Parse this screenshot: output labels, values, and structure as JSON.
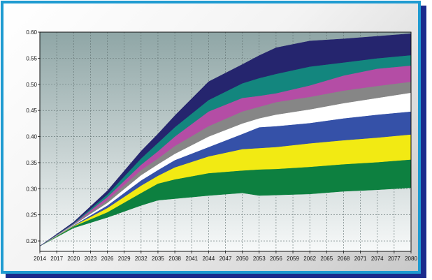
{
  "chart_data": {
    "type": "area",
    "title": "",
    "xlabel": "",
    "ylabel": "",
    "xlim": [
      2014,
      2080
    ],
    "ylim": [
      0.18,
      0.6
    ],
    "grid": true,
    "legend": "none",
    "x_ticks": [
      "2014",
      "2017",
      "2020",
      "2023",
      "2026",
      "2029",
      "2032",
      "2035",
      "2038",
      "2041",
      "2044",
      "2047",
      "2050",
      "2053",
      "2056",
      "2059",
      "2062",
      "2065",
      "2068",
      "2071",
      "2074",
      "2077",
      "2080"
    ],
    "y_ticks": [
      "0.20",
      "0.25",
      "0.30",
      "0.35",
      "0.40",
      "0.45",
      "0.50",
      "0.55",
      "0.60"
    ],
    "x": [
      2014,
      2020,
      2026,
      2032,
      2035,
      2038,
      2044,
      2050,
      2053,
      2056,
      2062,
      2068,
      2074,
      2080
    ],
    "bands": [
      {
        "fill": "#0d8040",
        "lower": [
          0.19,
          0.225,
          0.245,
          0.268,
          0.278,
          0.281,
          0.287,
          0.292,
          0.287,
          0.288,
          0.29,
          0.295,
          0.298,
          0.302
        ],
        "upper": [
          0.19,
          0.228,
          0.255,
          0.292,
          0.31,
          0.318,
          0.33,
          0.335,
          0.337,
          0.338,
          0.342,
          0.347,
          0.351,
          0.356
        ]
      },
      {
        "fill": "#f2ea13",
        "lower": [
          0.19,
          0.228,
          0.255,
          0.292,
          0.31,
          0.318,
          0.33,
          0.335,
          0.337,
          0.338,
          0.342,
          0.347,
          0.351,
          0.356
        ],
        "upper": [
          0.19,
          0.229,
          0.263,
          0.306,
          0.325,
          0.341,
          0.362,
          0.376,
          0.378,
          0.38,
          0.387,
          0.393,
          0.398,
          0.404
        ]
      },
      {
        "fill": "#3551a8",
        "lower": [
          0.19,
          0.229,
          0.263,
          0.306,
          0.325,
          0.341,
          0.362,
          0.376,
          0.378,
          0.38,
          0.387,
          0.393,
          0.398,
          0.404
        ],
        "upper": [
          0.19,
          0.23,
          0.268,
          0.316,
          0.336,
          0.355,
          0.38,
          0.405,
          0.418,
          0.42,
          0.426,
          0.435,
          0.442,
          0.448
        ]
      },
      {
        "fill": "#ffffff",
        "lower": [
          0.19,
          0.23,
          0.268,
          0.316,
          0.336,
          0.355,
          0.38,
          0.405,
          0.418,
          0.42,
          0.426,
          0.435,
          0.442,
          0.448
        ],
        "upper": [
          0.19,
          0.231,
          0.273,
          0.326,
          0.347,
          0.367,
          0.4,
          0.425,
          0.435,
          0.442,
          0.452,
          0.464,
          0.474,
          0.484
        ]
      },
      {
        "fill": "#868686",
        "lower": [
          0.19,
          0.231,
          0.273,
          0.326,
          0.347,
          0.367,
          0.4,
          0.425,
          0.435,
          0.442,
          0.452,
          0.464,
          0.474,
          0.484
        ],
        "upper": [
          0.19,
          0.232,
          0.278,
          0.336,
          0.358,
          0.382,
          0.42,
          0.448,
          0.457,
          0.466,
          0.476,
          0.488,
          0.497,
          0.505
        ]
      },
      {
        "fill": "#b44da5",
        "lower": [
          0.19,
          0.232,
          0.278,
          0.336,
          0.358,
          0.382,
          0.42,
          0.448,
          0.457,
          0.466,
          0.476,
          0.488,
          0.497,
          0.505
        ],
        "upper": [
          0.19,
          0.233,
          0.284,
          0.346,
          0.372,
          0.4,
          0.448,
          0.474,
          0.478,
          0.483,
          0.498,
          0.517,
          0.53,
          0.536
        ]
      },
      {
        "fill": "#13867e",
        "lower": [
          0.19,
          0.233,
          0.284,
          0.346,
          0.372,
          0.4,
          0.448,
          0.474,
          0.478,
          0.483,
          0.498,
          0.517,
          0.53,
          0.536
        ],
        "upper": [
          0.19,
          0.234,
          0.289,
          0.358,
          0.388,
          0.418,
          0.47,
          0.502,
          0.512,
          0.52,
          0.534,
          0.542,
          0.55,
          0.556
        ]
      },
      {
        "fill": "#25256e",
        "lower": [
          0.19,
          0.234,
          0.289,
          0.358,
          0.388,
          0.418,
          0.47,
          0.502,
          0.512,
          0.52,
          0.534,
          0.542,
          0.55,
          0.556
        ],
        "upper": [
          0.19,
          0.236,
          0.296,
          0.372,
          0.405,
          0.44,
          0.505,
          0.538,
          0.555,
          0.57,
          0.583,
          0.587,
          0.592,
          0.597
        ]
      }
    ]
  }
}
